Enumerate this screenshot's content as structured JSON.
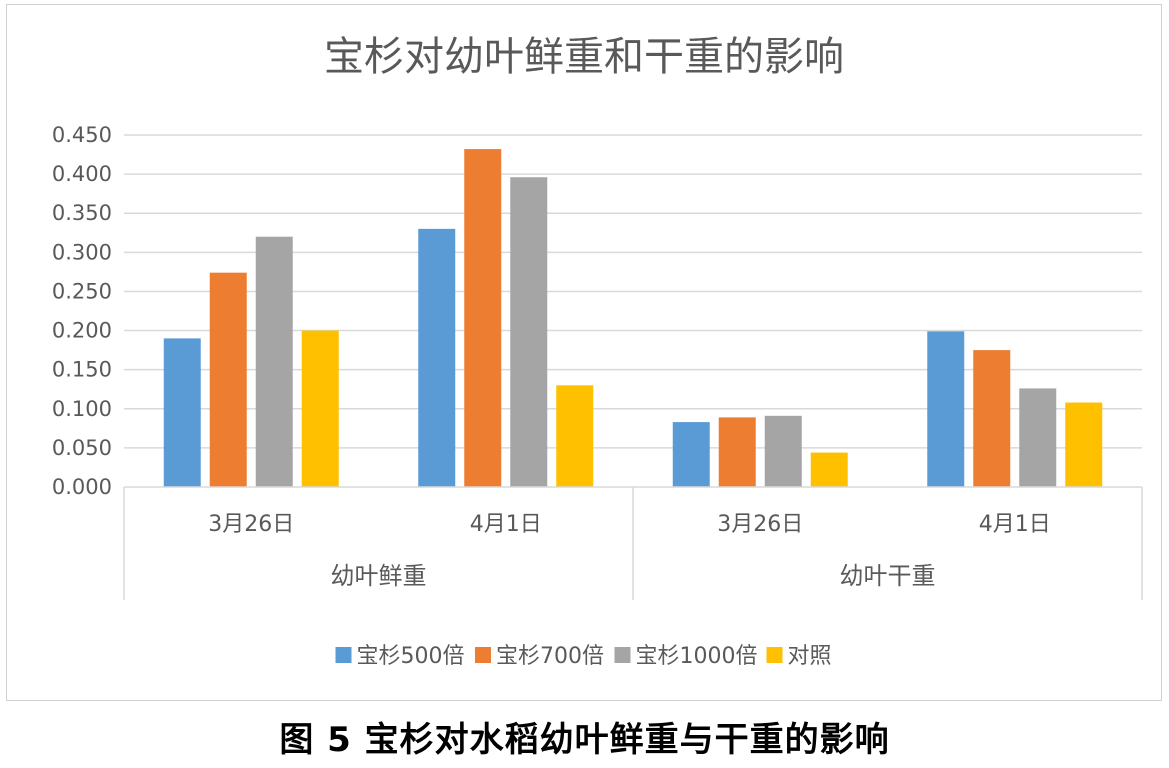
{
  "caption": "图 5  宝杉对水稻幼叶鲜重与干重的影响",
  "chart_data": {
    "type": "bar",
    "title": "宝杉对幼叶鲜重和干重的影响",
    "groups": [
      {
        "label": "幼叶鲜重",
        "categories": [
          "3月26日",
          "4月1日"
        ]
      },
      {
        "label": "幼叶干重",
        "categories": [
          "3月26日",
          "4月1日"
        ]
      }
    ],
    "series": [
      {
        "name": "宝杉500倍",
        "color": "#5b9bd5",
        "values": [
          0.19,
          0.33,
          0.083,
          0.199
        ]
      },
      {
        "name": "宝杉700倍",
        "color": "#ed7d31",
        "values": [
          0.274,
          0.432,
          0.089,
          0.175
        ]
      },
      {
        "name": "宝杉1000倍",
        "color": "#a5a5a5",
        "values": [
          0.32,
          0.396,
          0.091,
          0.126
        ]
      },
      {
        "name": "对照",
        "color": "#ffc000",
        "values": [
          0.2,
          0.13,
          0.044,
          0.108
        ]
      }
    ],
    "ylim": [
      0,
      0.45
    ],
    "yticks": [
      "0.000",
      "0.050",
      "0.100",
      "0.150",
      "0.200",
      "0.250",
      "0.300",
      "0.350",
      "0.400",
      "0.450"
    ],
    "grid": true,
    "legend": "bottom"
  }
}
